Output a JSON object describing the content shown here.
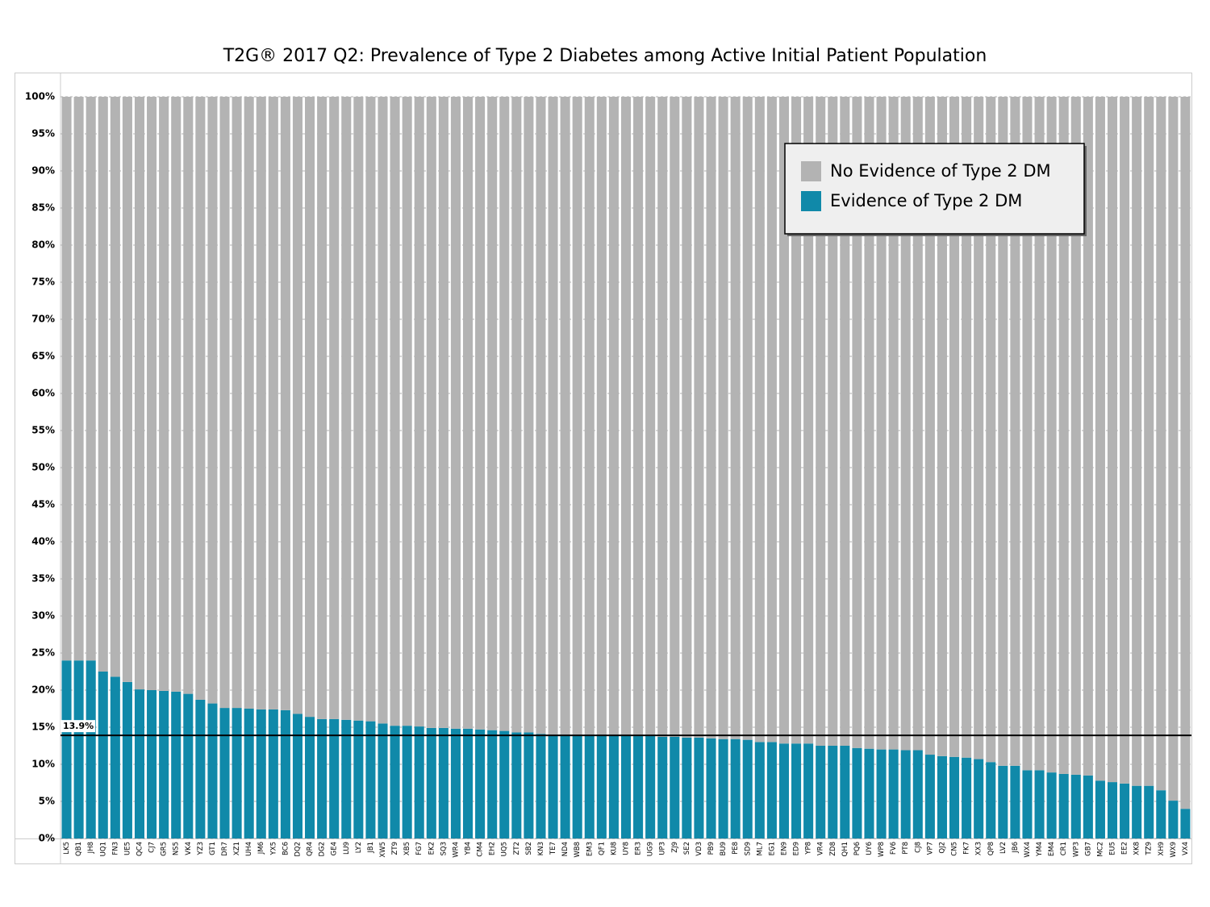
{
  "chart_data": {
    "type": "stacked_bar",
    "title": "T2G® 2017 Q2: Prevalence of Type 2 Diabetes among Active Initial Patient Population",
    "categories": [
      "LK5",
      "QB1",
      "JH8",
      "UQ1",
      "FN3",
      "UE5",
      "QC4",
      "CJ7",
      "GR5",
      "NS5",
      "VK4",
      "YZ3",
      "GT1",
      "DR7",
      "XZ1",
      "UH4",
      "JM6",
      "YX5",
      "BC6",
      "DQ2",
      "QR4",
      "DG2",
      "GE4",
      "LU9",
      "LY2",
      "JB1",
      "XW5",
      "ZT9",
      "XB5",
      "FG7",
      "EK2",
      "SQ3",
      "WR4",
      "YB4",
      "CM4",
      "EH2",
      "UQ5",
      "ZT2",
      "SB2",
      "KN3",
      "TE7",
      "ND4",
      "WB8",
      "EM3",
      "QF1",
      "KU8",
      "UY8",
      "ER3",
      "UG9",
      "UP3",
      "ZJ9",
      "SE2",
      "VD3",
      "PB9",
      "BU9",
      "PE8",
      "SD9",
      "ML7",
      "EG1",
      "EN9",
      "ED9",
      "YP8",
      "VR4",
      "ZD8",
      "QH1",
      "PQ6",
      "UY6",
      "WP8",
      "FV6",
      "PT8",
      "CJ8",
      "VP7",
      "QJ2",
      "CN5",
      "FK7",
      "XX3",
      "QP8",
      "LV2",
      "JB6",
      "WX4",
      "YM4",
      "EM4",
      "CR1",
      "WP3",
      "GB7",
      "MC2",
      "EU5",
      "EE2",
      "XK8",
      "TZ9",
      "XH9",
      "WX9",
      "VX4"
    ],
    "series": [
      {
        "name": "Evidence of Type 2 DM",
        "color": "#1089a9",
        "values": [
          24.0,
          24.0,
          24.0,
          22.5,
          21.8,
          21.1,
          20.1,
          20.0,
          19.9,
          19.8,
          19.5,
          18.7,
          18.2,
          17.6,
          17.6,
          17.5,
          17.4,
          17.4,
          17.3,
          16.8,
          16.4,
          16.1,
          16.1,
          16.0,
          15.9,
          15.8,
          15.5,
          15.2,
          15.2,
          15.1,
          14.9,
          14.9,
          14.8,
          14.8,
          14.7,
          14.6,
          14.5,
          14.3,
          14.3,
          14.1,
          14.0,
          14.0,
          14.0,
          14.0,
          14.0,
          14.0,
          13.9,
          13.8,
          13.8,
          13.7,
          13.7,
          13.6,
          13.6,
          13.5,
          13.4,
          13.4,
          13.3,
          13.0,
          13.0,
          12.8,
          12.8,
          12.8,
          12.5,
          12.5,
          12.5,
          12.2,
          12.1,
          12.0,
          12.0,
          11.9,
          11.9,
          11.3,
          11.1,
          11.0,
          10.9,
          10.7,
          10.3,
          9.8,
          9.8,
          9.2,
          9.2,
          8.9,
          8.7,
          8.6,
          8.5,
          7.8,
          7.6,
          7.4,
          7.1,
          7.1,
          6.5,
          5.1,
          4.0
        ]
      },
      {
        "name": "No Evidence of Type 2 DM",
        "color": "#b3b3b3",
        "values": [
          76.0,
          76.0,
          76.0,
          77.5,
          78.2,
          78.9,
          79.9,
          80.0,
          80.1,
          80.2,
          80.5,
          81.3,
          81.8,
          82.4,
          82.4,
          82.5,
          82.6,
          82.6,
          82.7,
          83.2,
          83.6,
          83.9,
          83.9,
          84.0,
          84.1,
          84.2,
          84.5,
          84.8,
          84.8,
          84.9,
          85.1,
          85.1,
          85.2,
          85.2,
          85.3,
          85.4,
          85.5,
          85.7,
          85.7,
          85.9,
          86.0,
          86.0,
          86.0,
          86.0,
          86.0,
          86.0,
          86.1,
          86.2,
          86.2,
          86.3,
          86.3,
          86.4,
          86.4,
          86.5,
          86.6,
          86.6,
          86.7,
          87.0,
          87.0,
          87.2,
          87.2,
          87.2,
          87.5,
          87.5,
          87.5,
          87.8,
          87.9,
          88.0,
          88.0,
          88.1,
          88.1,
          88.7,
          88.9,
          89.0,
          89.1,
          89.3,
          89.7,
          90.2,
          90.2,
          90.8,
          90.8,
          91.1,
          91.3,
          91.4,
          91.5,
          92.2,
          92.4,
          92.6,
          92.9,
          92.9,
          93.5,
          94.9,
          96.0
        ]
      }
    ],
    "ylim": [
      0,
      100
    ],
    "yticks": [
      {
        "value": 0,
        "label": "0%"
      },
      {
        "value": 5,
        "label": "5%"
      },
      {
        "value": 10,
        "label": "10%"
      },
      {
        "value": 15,
        "label": "15%"
      },
      {
        "value": 20,
        "label": "20%"
      },
      {
        "value": 25,
        "label": "25%"
      },
      {
        "value": 30,
        "label": "30%"
      },
      {
        "value": 35,
        "label": "35%"
      },
      {
        "value": 40,
        "label": "40%"
      },
      {
        "value": 45,
        "label": "45%"
      },
      {
        "value": 50,
        "label": "50%"
      },
      {
        "value": 55,
        "label": "55%"
      },
      {
        "value": 60,
        "label": "60%"
      },
      {
        "value": 65,
        "label": "65%"
      },
      {
        "value": 70,
        "label": "70%"
      },
      {
        "value": 75,
        "label": "75%"
      },
      {
        "value": 80,
        "label": "80%"
      },
      {
        "value": 85,
        "label": "85%"
      },
      {
        "value": 90,
        "label": "90%"
      },
      {
        "value": 95,
        "label": "95%"
      },
      {
        "value": 100,
        "label": "100%"
      }
    ],
    "grid": true,
    "legend": "upper right",
    "reference_line": {
      "value": 13.9,
      "label": "13.9%"
    }
  }
}
